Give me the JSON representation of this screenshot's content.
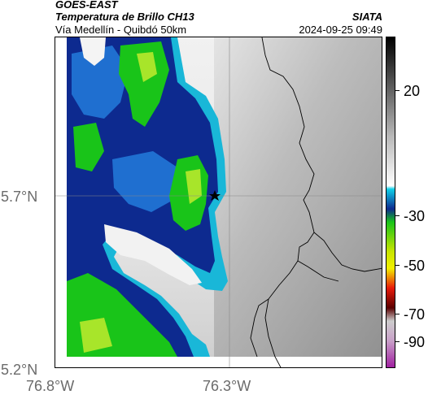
{
  "header": {
    "satellite": "GOES-EAST",
    "product": "Temperatura de Brillo CH13",
    "location": "Vía Medellín - Quibdó 50km",
    "organization": "SIATA",
    "timestamp": "2024-09-25 09:49"
  },
  "map": {
    "lat_labels": [
      "5.7°N",
      "5.2°N"
    ],
    "lon_labels": [
      "76.8°W",
      "76.3°W"
    ],
    "marker": "star"
  },
  "colorbar": {
    "ticks": [
      "20",
      "-30",
      "-50",
      "-70",
      "-90"
    ],
    "colors": {
      "warm_top": "#000000",
      "warm_mid": "#9a9a9a",
      "warm_low": "#ffffff",
      "cyan": "#19b7d8",
      "blue": "#0d2a8f",
      "green": "#19c419",
      "yellow": "#f2ef00",
      "red": "#e81a0a",
      "dark_red": "#5a0000",
      "magenta": "#b030b0"
    }
  }
}
